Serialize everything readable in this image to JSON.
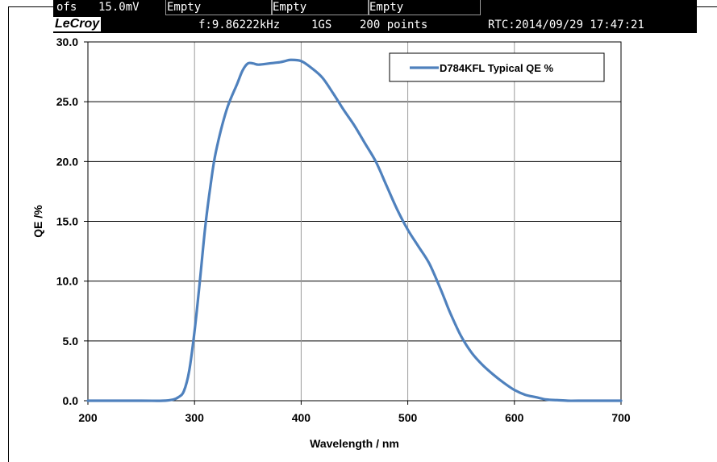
{
  "scope_header": {
    "offset_label": "ofs",
    "offset_value": "15.0mV",
    "channels": [
      "Empty",
      "Empty",
      "Empty"
    ],
    "brand": "LeCroy",
    "frequency": "f:9.86222kHz",
    "sample_rate": "1GS",
    "points": "200 points",
    "rtc": "RTC:2014/09/29 17:47:21"
  },
  "chart_data": {
    "type": "line",
    "xlabel": "Wavelength / nm",
    "ylabel": "QE /%",
    "xlim": [
      200,
      700
    ],
    "ylim": [
      0,
      30
    ],
    "x_ticks": [
      "200",
      "300",
      "400",
      "500",
      "600",
      "700"
    ],
    "y_ticks": [
      "0.0",
      "5.0",
      "10.0",
      "15.0",
      "20.0",
      "25.0",
      "30.0"
    ],
    "grid": true,
    "legend_position": "top-right",
    "line_color": "#4F81BD",
    "series": [
      {
        "name": "D784KFL Typical QE %",
        "x": [
          200,
          250,
          270,
          280,
          285,
          290,
          295,
          300,
          305,
          310,
          315,
          320,
          330,
          340,
          345,
          350,
          355,
          360,
          370,
          380,
          385,
          390,
          400,
          410,
          420,
          430,
          440,
          450,
          460,
          470,
          480,
          490,
          500,
          510,
          520,
          530,
          535,
          540,
          550,
          560,
          570,
          580,
          590,
          600,
          610,
          620,
          630,
          640,
          650,
          660,
          700
        ],
        "y": [
          0,
          0,
          0,
          0.1,
          0.3,
          0.8,
          2.5,
          5.8,
          10.0,
          14.5,
          18.0,
          20.8,
          24.3,
          26.5,
          27.6,
          28.2,
          28.2,
          28.1,
          28.2,
          28.3,
          28.4,
          28.5,
          28.4,
          27.8,
          27.0,
          25.7,
          24.3,
          23.0,
          21.5,
          20.0,
          18.0,
          16.0,
          14.3,
          12.9,
          11.5,
          9.5,
          8.4,
          7.3,
          5.4,
          4.0,
          3.0,
          2.2,
          1.5,
          0.9,
          0.5,
          0.3,
          0.1,
          0.05,
          0,
          0,
          0
        ]
      }
    ]
  }
}
